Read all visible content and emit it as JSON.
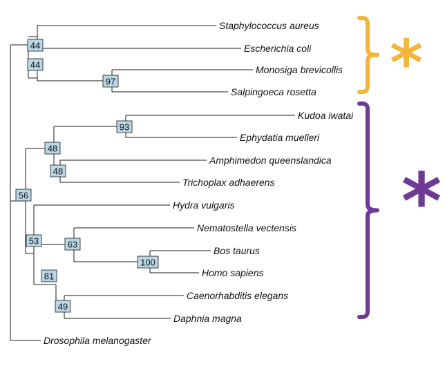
{
  "colors": {
    "branch": "#1a1a1a",
    "node_fill": "#b9d7e6",
    "bracket_orange": "#f2b63c",
    "bracket_purple": "#6e3a96"
  },
  "tree": {
    "leaves": [
      "Staphylococcus aureus",
      "Escherichia coli",
      "Monosiga brevicollis",
      "Salpingoeca rosetta",
      "Kudoa iwatai",
      "Ephydatia muelleri",
      "Amphimedon queenslandica",
      "Trichoplax adhaerens",
      "Hydra vulgaris",
      "Nematostella vectensis",
      "Bos taurus",
      "Homo sapiens",
      "Caenorhabditis elegans",
      "Daphnia magna",
      "Drosophila melanogaster"
    ],
    "support_values": [
      "44",
      "44",
      "97",
      "93",
      "48",
      "48",
      "56",
      "53",
      "63",
      "100",
      "81",
      "49"
    ]
  },
  "brackets": [
    {
      "symbol": "*",
      "color": "#f2b63c"
    },
    {
      "symbol": "*",
      "color": "#6e3a96"
    }
  ]
}
